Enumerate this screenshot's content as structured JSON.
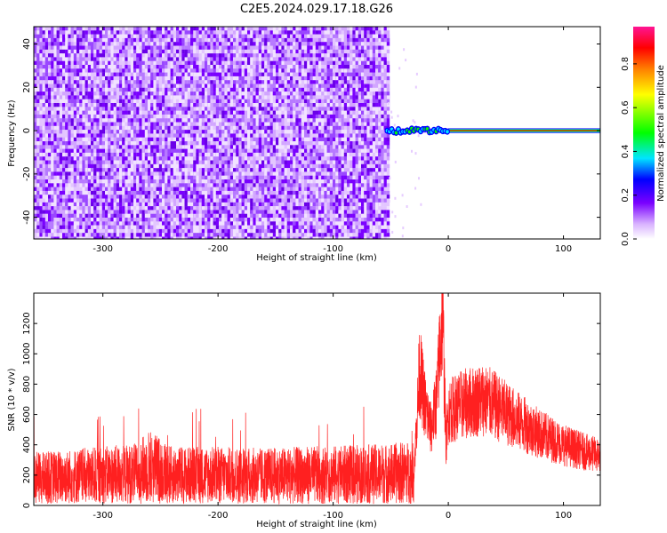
{
  "title": "C2E5.2024.029.17.18.G26",
  "chart_data": [
    {
      "type": "heatmap",
      "xlabel": "Height of straight line (km)",
      "ylabel": "Frequency (Hz)",
      "xlim": [
        -360,
        132
      ],
      "ylim": [
        -50,
        48
      ],
      "xticks": [
        -300,
        -200,
        -100,
        0,
        100
      ],
      "yticks": [
        -40,
        -20,
        0,
        20,
        40
      ],
      "xtick_labels": [
        "-300",
        "-200",
        "-100",
        "0",
        "100"
      ],
      "ytick_labels": [
        "-40",
        "-20",
        "0",
        "20",
        "40"
      ],
      "noise_region_x": [
        -360,
        -53
      ],
      "signal_line": {
        "x_start": -53,
        "x_end": 132,
        "frequency": 0
      },
      "grid": false,
      "colorbar": {
        "label": "Normalized spectral amplitude",
        "range": [
          0,
          0.97
        ],
        "ticks": [
          0.0,
          0.2,
          0.4,
          0.6,
          0.8
        ],
        "tick_labels": [
          "0.0",
          "0.2",
          "0.4",
          "0.6",
          "0.8"
        ],
        "colors": [
          "#ffffff",
          "#7a00ff",
          "#0000ff",
          "#00e5ff",
          "#00ff00",
          "#ffff00",
          "#ff8000",
          "#ff0000",
          "#ff1493"
        ]
      }
    },
    {
      "type": "line",
      "xlabel": "Height of straight line (km)",
      "ylabel": "SNR (10 * v/v)",
      "xlim": [
        -360,
        132
      ],
      "ylim": [
        0,
        1400
      ],
      "xticks": [
        -300,
        -200,
        -100,
        0,
        100
      ],
      "yticks": [
        0,
        200,
        400,
        600,
        800,
        1000,
        1200
      ],
      "xtick_labels": [
        "-300",
        "-200",
        "-100",
        "0",
        "100"
      ],
      "ytick_labels": [
        "0",
        "200",
        "400",
        "600",
        "800",
        "1000",
        "1200"
      ],
      "grid": false,
      "series": [
        {
          "color": "#ff2020",
          "x": [
            -360,
            -330,
            -300,
            -270,
            -260,
            -240,
            -200,
            -160,
            -120,
            -80,
            -50,
            -30,
            -27,
            -25,
            -20,
            -15,
            -10,
            -5,
            -2,
            0,
            10,
            20,
            30,
            40,
            60,
            80,
            100,
            120,
            132
          ],
          "y": [
            180,
            190,
            200,
            210,
            260,
            200,
            200,
            195,
            200,
            205,
            210,
            220,
            600,
            900,
            650,
            500,
            700,
            1300,
            400,
            620,
            660,
            680,
            700,
            660,
            560,
            470,
            400,
            350,
            330
          ]
        }
      ]
    }
  ]
}
